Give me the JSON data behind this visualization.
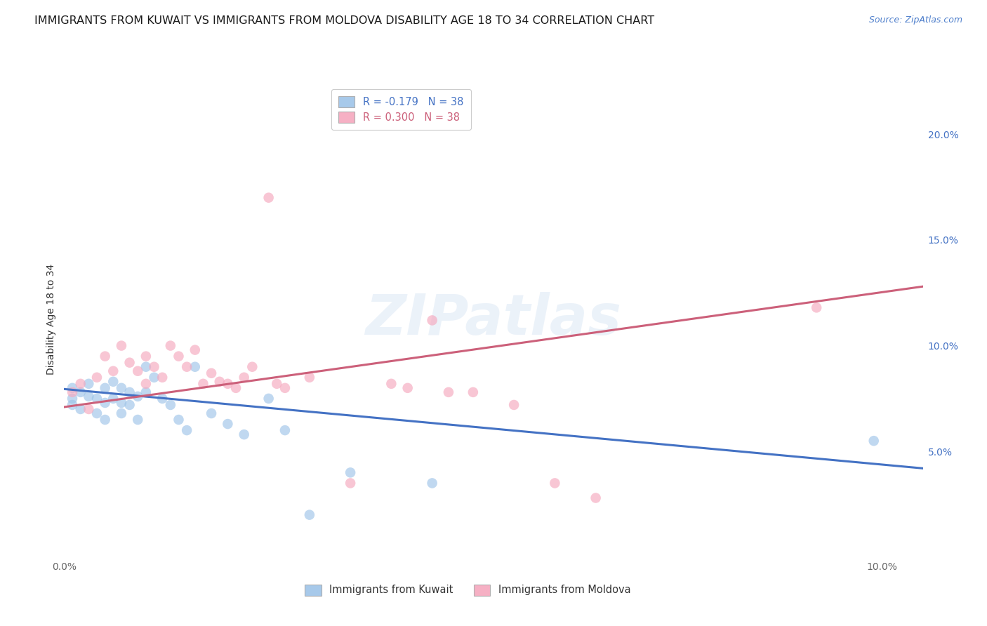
{
  "title": "IMMIGRANTS FROM KUWAIT VS IMMIGRANTS FROM MOLDOVA DISABILITY AGE 18 TO 34 CORRELATION CHART",
  "source": "Source: ZipAtlas.com",
  "ylabel": "Disability Age 18 to 34",
  "xlim": [
    0.0,
    0.105
  ],
  "ylim": [
    0.0,
    0.225
  ],
  "x_ticks": [
    0.0,
    0.02,
    0.04,
    0.06,
    0.08,
    0.1
  ],
  "x_tick_labels": [
    "0.0%",
    "",
    "",
    "",
    "",
    "10.0%"
  ],
  "y_ticks_right": [
    0.05,
    0.1,
    0.15,
    0.2
  ],
  "y_tick_labels_right": [
    "5.0%",
    "10.0%",
    "15.0%",
    "20.0%"
  ],
  "legend_line1": "R = -0.179   N = 38",
  "legend_line2": "R = 0.300   N = 38",
  "kuwait_color": "#9ec4e8",
  "moldova_color": "#f5a8be",
  "kuwait_line_color": "#4472c4",
  "moldova_line_color": "#cc607a",
  "watermark": "ZIPatlas",
  "kuwait_x": [
    0.001,
    0.001,
    0.001,
    0.002,
    0.002,
    0.003,
    0.003,
    0.004,
    0.004,
    0.005,
    0.005,
    0.005,
    0.006,
    0.006,
    0.007,
    0.007,
    0.007,
    0.008,
    0.008,
    0.009,
    0.009,
    0.01,
    0.01,
    0.011,
    0.012,
    0.013,
    0.014,
    0.015,
    0.016,
    0.018,
    0.02,
    0.022,
    0.025,
    0.027,
    0.03,
    0.035,
    0.045,
    0.099
  ],
  "kuwait_y": [
    0.08,
    0.075,
    0.072,
    0.078,
    0.07,
    0.082,
    0.076,
    0.075,
    0.068,
    0.08,
    0.073,
    0.065,
    0.083,
    0.075,
    0.08,
    0.073,
    0.068,
    0.078,
    0.072,
    0.076,
    0.065,
    0.09,
    0.078,
    0.085,
    0.075,
    0.072,
    0.065,
    0.06,
    0.09,
    0.068,
    0.063,
    0.058,
    0.075,
    0.06,
    0.02,
    0.04,
    0.035,
    0.055
  ],
  "moldova_x": [
    0.001,
    0.002,
    0.003,
    0.004,
    0.005,
    0.006,
    0.007,
    0.008,
    0.009,
    0.01,
    0.01,
    0.011,
    0.012,
    0.013,
    0.014,
    0.015,
    0.016,
    0.017,
    0.018,
    0.019,
    0.02,
    0.021,
    0.022,
    0.023,
    0.025,
    0.026,
    0.027,
    0.03,
    0.035,
    0.04,
    0.042,
    0.045,
    0.047,
    0.05,
    0.055,
    0.06,
    0.065,
    0.092
  ],
  "moldova_y": [
    0.078,
    0.082,
    0.07,
    0.085,
    0.095,
    0.088,
    0.1,
    0.092,
    0.088,
    0.082,
    0.095,
    0.09,
    0.085,
    0.1,
    0.095,
    0.09,
    0.098,
    0.082,
    0.087,
    0.083,
    0.082,
    0.08,
    0.085,
    0.09,
    0.17,
    0.082,
    0.08,
    0.085,
    0.035,
    0.082,
    0.08,
    0.112,
    0.078,
    0.078,
    0.072,
    0.035,
    0.028,
    0.118
  ],
  "kuwait_trend_x0": 0.0,
  "kuwait_trend_y0": 0.0795,
  "kuwait_trend_x1": 0.105,
  "kuwait_trend_y1": 0.042,
  "moldova_trend_x0": 0.0,
  "moldova_trend_y0": 0.071,
  "moldova_trend_x1": 0.105,
  "moldova_trend_y1": 0.128,
  "grid_color": "#d8d8d8",
  "background_color": "#ffffff",
  "title_fontsize": 11.5,
  "tick_fontsize": 10,
  "marker_size": 110,
  "legend_fontsize": 10.5
}
